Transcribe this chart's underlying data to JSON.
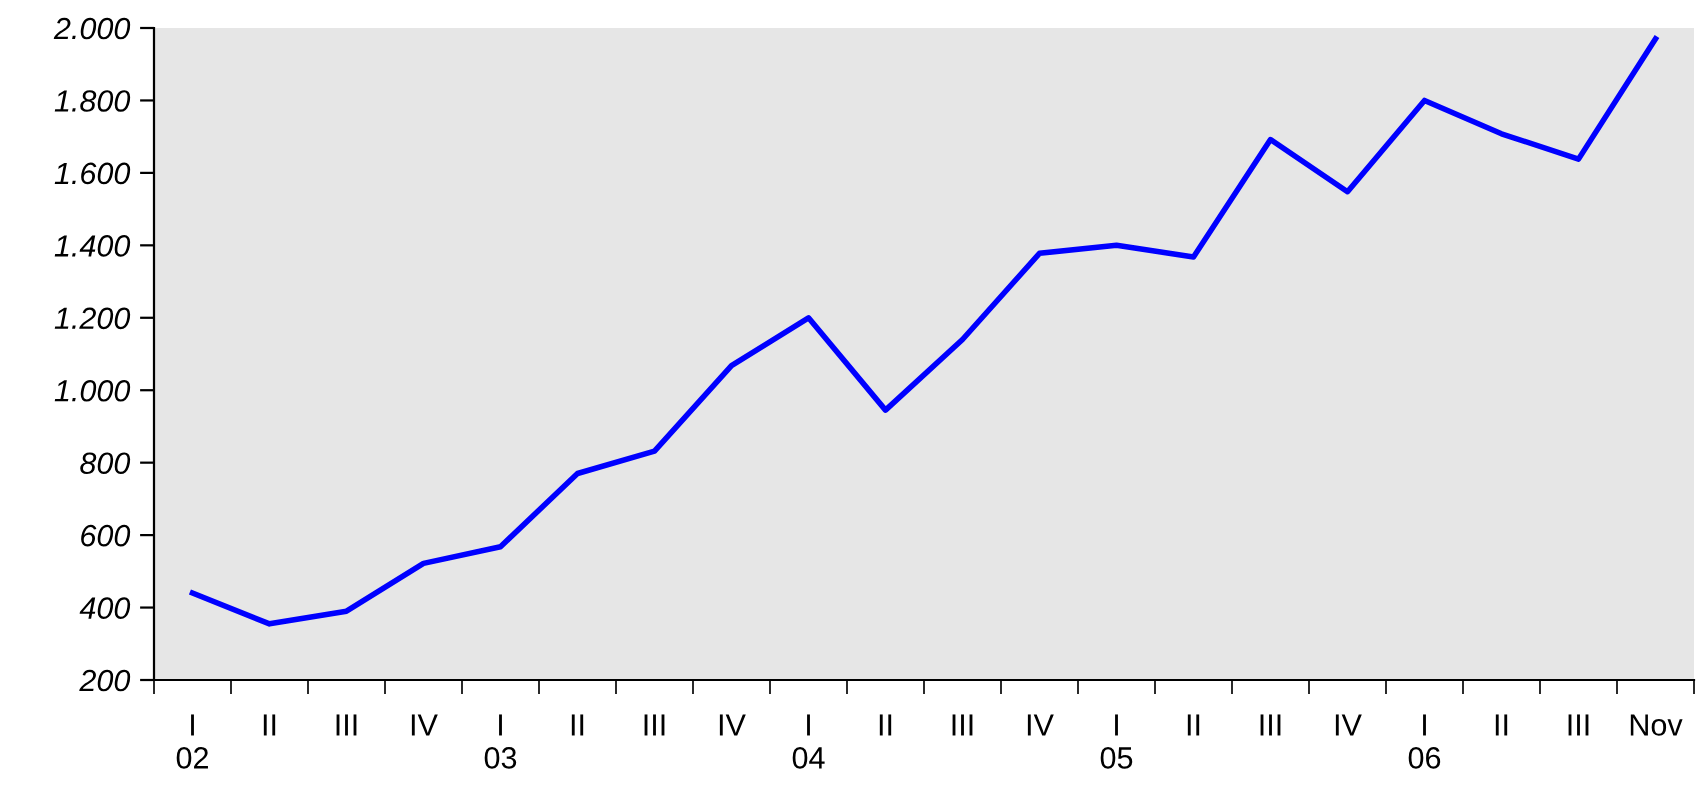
{
  "chart_data": {
    "type": "line",
    "categories": [
      "I\n02",
      "II",
      "III",
      "IV",
      "I\n03",
      "II",
      "III",
      "IV",
      "I\n04",
      "II",
      "III",
      "IV",
      "I\n05",
      "II",
      "III",
      "IV",
      "I\n06",
      "II",
      "III",
      "Nov"
    ],
    "series": [
      {
        "color": "#0000ff",
        "values": [
          440,
          355,
          390,
          522,
          568,
          770,
          832,
          1068,
          1200,
          945,
          1140,
          1378,
          1400,
          1368,
          1692,
          1548,
          1800,
          1708,
          1638,
          1970
        ]
      }
    ],
    "ylim": [
      200,
      2000
    ],
    "yticks": [
      200,
      400,
      600,
      800,
      {
        "value": 1000,
        "label": "1.000"
      },
      {
        "value": 1200,
        "label": "1.200"
      },
      {
        "value": 1400,
        "label": "1.400"
      },
      {
        "value": 1600,
        "label": "1.600"
      },
      {
        "value": 1800,
        "label": "1.800"
      },
      {
        "value": 2000,
        "label": "2.000"
      }
    ],
    "grid": false,
    "legend": false,
    "marker": "none",
    "line_style": "solid"
  }
}
